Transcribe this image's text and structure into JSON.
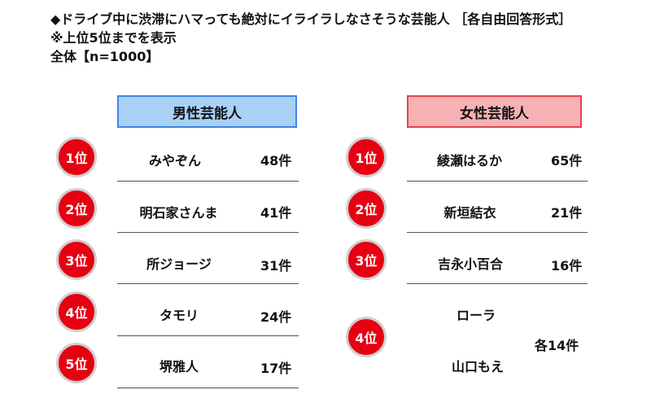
{
  "header": {
    "title": "◆ドライブ中に渋滞にハマっても絶対にイライラしなさそうな芸能人 ［各自由回答形式］",
    "note": "※上位5位までを表示",
    "sample": "全体【n=1000】"
  },
  "male": {
    "heading": "男性芸能人",
    "rows": [
      {
        "rank": "1位",
        "name": "みやぞん",
        "count": "48件"
      },
      {
        "rank": "2位",
        "name": "明石家さんま",
        "count": "41件"
      },
      {
        "rank": "3位",
        "name": "所ジョージ",
        "count": "31件"
      },
      {
        "rank": "4位",
        "name": "タモリ",
        "count": "24件"
      },
      {
        "rank": "5位",
        "name": "堺雅人",
        "count": "17件"
      }
    ]
  },
  "female": {
    "heading": "女性芸能人",
    "rows": [
      {
        "rank": "1位",
        "name": "綾瀬はるか",
        "count": "65件"
      },
      {
        "rank": "2位",
        "name": "新垣結衣",
        "count": "21件"
      },
      {
        "rank": "3位",
        "name": "吉永小百合",
        "count": "16件"
      },
      {
        "rank": "4位",
        "names": [
          "ローラ",
          "山口もえ"
        ],
        "count": "各14件"
      }
    ]
  }
}
